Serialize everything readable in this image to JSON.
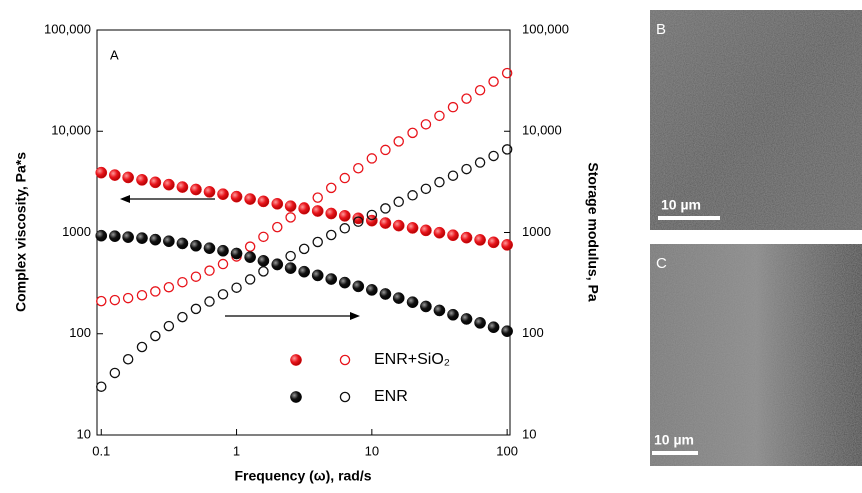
{
  "chart_data": {
    "type": "scatter",
    "annotation": "A",
    "x_label": "Frequency (ω), rad/s",
    "y_label": "Complex viscosity, Pa*s",
    "y2_label": "Storage modulus, Pa",
    "log_x": true,
    "log_y": true,
    "xlim": [
      0.093,
      105
    ],
    "xticks": [
      0.1,
      1,
      10,
      100
    ],
    "ylim": [
      10,
      100000
    ],
    "yticks": [
      10,
      100,
      1000,
      {
        "value": 10000,
        "label": "10,000"
      },
      {
        "value": 100000,
        "label": "100,000"
      }
    ],
    "y2lim": [
      10,
      100000
    ],
    "y2ticks": [
      10,
      100,
      1000,
      {
        "value": 10000,
        "label": "10,000"
      },
      {
        "value": 100000,
        "label": "100,000"
      }
    ],
    "x": [
      0.1,
      0.126,
      0.158,
      0.2,
      0.251,
      0.316,
      0.398,
      0.501,
      0.631,
      0.794,
      1,
      1.26,
      1.58,
      2,
      2.51,
      3.16,
      3.98,
      5.01,
      6.31,
      7.94,
      10,
      12.6,
      15.8,
      20,
      25.1,
      31.6,
      39.8,
      50.1,
      63.1,
      79.4,
      100
    ],
    "series": [
      {
        "name": "ENR+SiO₂",
        "color": "#e8141b",
        "viscosity": [
          3900,
          3690,
          3500,
          3310,
          3130,
          2970,
          2810,
          2660,
          2520,
          2390,
          2260,
          2140,
          2030,
          1920,
          1820,
          1720,
          1630,
          1540,
          1460,
          1380,
          1310,
          1240,
          1170,
          1110,
          1050,
          995,
          940,
          890,
          845,
          800,
          755
        ],
        "storage_modulus": [
          210,
          215,
          225,
          240,
          262,
          288,
          323,
          366,
          420,
          488,
          580,
          725,
          906,
          1130,
          1410,
          1770,
          2210,
          2760,
          3450,
          4310,
          5390,
          6540,
          7940,
          9640,
          11700,
          14200,
          17300,
          21000,
          25400,
          30900,
          37500
        ]
      },
      {
        "name": "ENR",
        "color": "#111111",
        "viscosity": [
          930,
          920,
          900,
          880,
          850,
          820,
          780,
          740,
          700,
          660,
          620,
          571,
          525,
          483,
          445,
          410,
          377,
          347,
          320,
          294,
          271,
          247,
          225,
          205,
          186,
          170,
          154,
          140,
          128,
          116,
          106
        ],
        "storage_modulus": [
          30,
          41,
          56,
          74,
          95,
          119,
          146,
          176,
          208,
          245,
          285,
          344,
          413,
          493,
          585,
          689,
          806,
          945,
          1100,
          1280,
          1490,
          1730,
          2010,
          2330,
          2700,
          3140,
          3640,
          4230,
          4910,
          5700,
          6620
        ]
      }
    ]
  },
  "images": [
    {
      "label": "B",
      "scale_bar": "10 µm"
    },
    {
      "label": "C",
      "scale_bar": "10 µm"
    }
  ]
}
